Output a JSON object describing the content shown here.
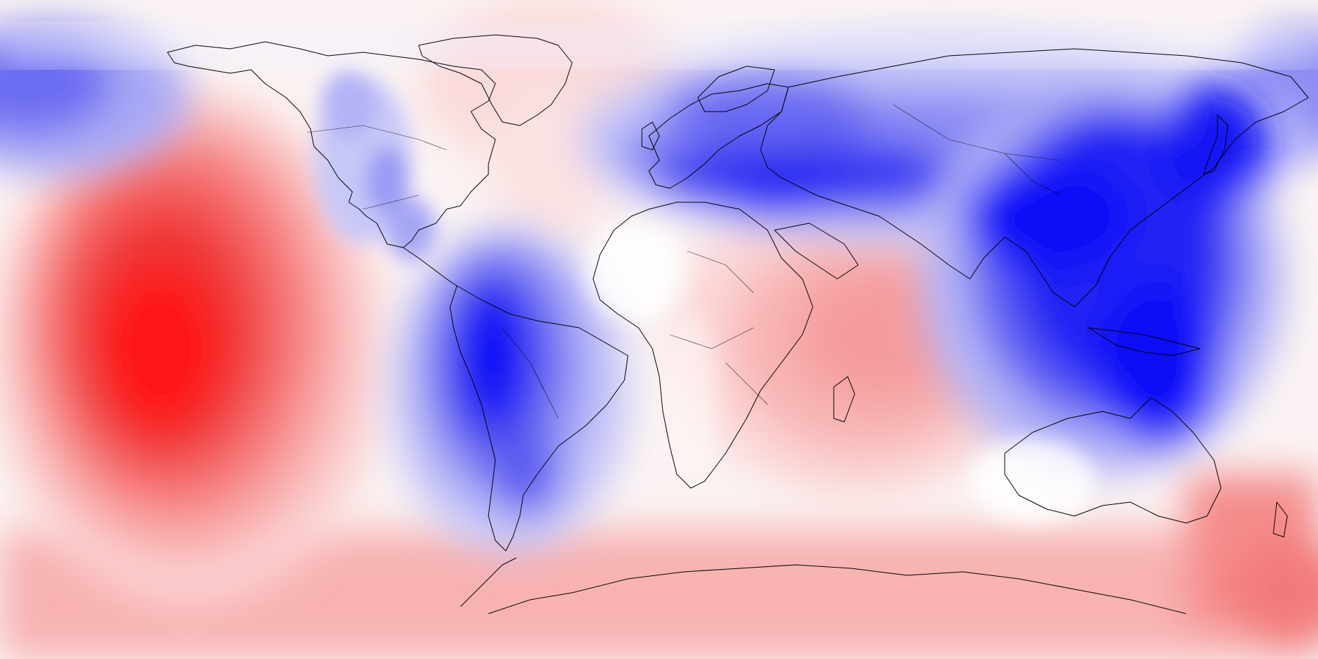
{
  "map": {
    "projection": "equirectangular",
    "field": "diverging",
    "palette": {
      "positive": "#ff1a1a",
      "neutral": "#ffffff",
      "negative": "#0000ff",
      "coastline": "#000000"
    },
    "anomalies": [
      {
        "id": "central-pacific-high",
        "sign": "positive",
        "strength": 1.0
      },
      {
        "id": "indian-ocean-madagascar-high",
        "sign": "positive",
        "strength": 0.45
      },
      {
        "id": "north-atlantic-greenland-high",
        "sign": "positive",
        "strength": 0.2
      },
      {
        "id": "southern-ocean-antarctic-high",
        "sign": "positive",
        "strength": 0.35
      },
      {
        "id": "eurasia-mediterranean-low",
        "sign": "negative",
        "strength": 0.9
      },
      {
        "id": "southeast-asia-maritime-low",
        "sign": "negative",
        "strength": 1.0
      },
      {
        "id": "south-america-andes-low",
        "sign": "negative",
        "strength": 1.0
      },
      {
        "id": "north-pacific-alaska-low",
        "sign": "negative",
        "strength": 0.55
      },
      {
        "id": "western-north-america-low",
        "sign": "negative",
        "strength": 0.45
      }
    ]
  }
}
